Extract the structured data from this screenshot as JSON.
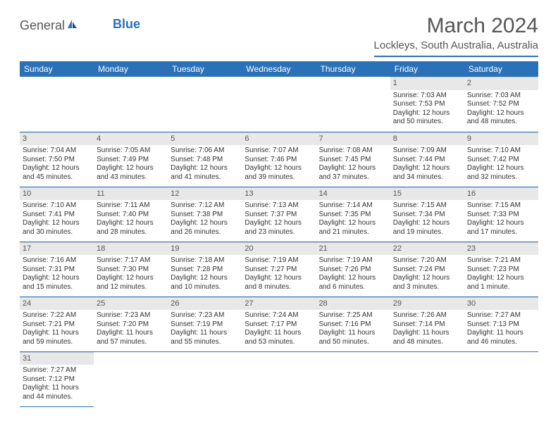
{
  "logo": {
    "general": "General",
    "blue": "Blue"
  },
  "title": "March 2024",
  "location": "Lockleys, South Australia, Australia",
  "dayHeaders": [
    "Sunday",
    "Monday",
    "Tuesday",
    "Wednesday",
    "Thursday",
    "Friday",
    "Saturday"
  ],
  "colors": {
    "headerBg": "#2b71b8",
    "headerText": "#ffffff",
    "dayNumBg": "#e8e8e8",
    "borderColor": "#2b71b8",
    "textColor": "#333333",
    "titleColor": "#555555"
  },
  "weeks": [
    [
      null,
      null,
      null,
      null,
      null,
      {
        "num": "1",
        "sunrise": "Sunrise: 7:03 AM",
        "sunset": "Sunset: 7:53 PM",
        "daylight": "Daylight: 12 hours and 50 minutes."
      },
      {
        "num": "2",
        "sunrise": "Sunrise: 7:03 AM",
        "sunset": "Sunset: 7:52 PM",
        "daylight": "Daylight: 12 hours and 48 minutes."
      }
    ],
    [
      {
        "num": "3",
        "sunrise": "Sunrise: 7:04 AM",
        "sunset": "Sunset: 7:50 PM",
        "daylight": "Daylight: 12 hours and 45 minutes."
      },
      {
        "num": "4",
        "sunrise": "Sunrise: 7:05 AM",
        "sunset": "Sunset: 7:49 PM",
        "daylight": "Daylight: 12 hours and 43 minutes."
      },
      {
        "num": "5",
        "sunrise": "Sunrise: 7:06 AM",
        "sunset": "Sunset: 7:48 PM",
        "daylight": "Daylight: 12 hours and 41 minutes."
      },
      {
        "num": "6",
        "sunrise": "Sunrise: 7:07 AM",
        "sunset": "Sunset: 7:46 PM",
        "daylight": "Daylight: 12 hours and 39 minutes."
      },
      {
        "num": "7",
        "sunrise": "Sunrise: 7:08 AM",
        "sunset": "Sunset: 7:45 PM",
        "daylight": "Daylight: 12 hours and 37 minutes."
      },
      {
        "num": "8",
        "sunrise": "Sunrise: 7:09 AM",
        "sunset": "Sunset: 7:44 PM",
        "daylight": "Daylight: 12 hours and 34 minutes."
      },
      {
        "num": "9",
        "sunrise": "Sunrise: 7:10 AM",
        "sunset": "Sunset: 7:42 PM",
        "daylight": "Daylight: 12 hours and 32 minutes."
      }
    ],
    [
      {
        "num": "10",
        "sunrise": "Sunrise: 7:10 AM",
        "sunset": "Sunset: 7:41 PM",
        "daylight": "Daylight: 12 hours and 30 minutes."
      },
      {
        "num": "11",
        "sunrise": "Sunrise: 7:11 AM",
        "sunset": "Sunset: 7:40 PM",
        "daylight": "Daylight: 12 hours and 28 minutes."
      },
      {
        "num": "12",
        "sunrise": "Sunrise: 7:12 AM",
        "sunset": "Sunset: 7:38 PM",
        "daylight": "Daylight: 12 hours and 26 minutes."
      },
      {
        "num": "13",
        "sunrise": "Sunrise: 7:13 AM",
        "sunset": "Sunset: 7:37 PM",
        "daylight": "Daylight: 12 hours and 23 minutes."
      },
      {
        "num": "14",
        "sunrise": "Sunrise: 7:14 AM",
        "sunset": "Sunset: 7:35 PM",
        "daylight": "Daylight: 12 hours and 21 minutes."
      },
      {
        "num": "15",
        "sunrise": "Sunrise: 7:15 AM",
        "sunset": "Sunset: 7:34 PM",
        "daylight": "Daylight: 12 hours and 19 minutes."
      },
      {
        "num": "16",
        "sunrise": "Sunrise: 7:15 AM",
        "sunset": "Sunset: 7:33 PM",
        "daylight": "Daylight: 12 hours and 17 minutes."
      }
    ],
    [
      {
        "num": "17",
        "sunrise": "Sunrise: 7:16 AM",
        "sunset": "Sunset: 7:31 PM",
        "daylight": "Daylight: 12 hours and 15 minutes."
      },
      {
        "num": "18",
        "sunrise": "Sunrise: 7:17 AM",
        "sunset": "Sunset: 7:30 PM",
        "daylight": "Daylight: 12 hours and 12 minutes."
      },
      {
        "num": "19",
        "sunrise": "Sunrise: 7:18 AM",
        "sunset": "Sunset: 7:28 PM",
        "daylight": "Daylight: 12 hours and 10 minutes."
      },
      {
        "num": "20",
        "sunrise": "Sunrise: 7:19 AM",
        "sunset": "Sunset: 7:27 PM",
        "daylight": "Daylight: 12 hours and 8 minutes."
      },
      {
        "num": "21",
        "sunrise": "Sunrise: 7:19 AM",
        "sunset": "Sunset: 7:26 PM",
        "daylight": "Daylight: 12 hours and 6 minutes."
      },
      {
        "num": "22",
        "sunrise": "Sunrise: 7:20 AM",
        "sunset": "Sunset: 7:24 PM",
        "daylight": "Daylight: 12 hours and 3 minutes."
      },
      {
        "num": "23",
        "sunrise": "Sunrise: 7:21 AM",
        "sunset": "Sunset: 7:23 PM",
        "daylight": "Daylight: 12 hours and 1 minute."
      }
    ],
    [
      {
        "num": "24",
        "sunrise": "Sunrise: 7:22 AM",
        "sunset": "Sunset: 7:21 PM",
        "daylight": "Daylight: 11 hours and 59 minutes."
      },
      {
        "num": "25",
        "sunrise": "Sunrise: 7:23 AM",
        "sunset": "Sunset: 7:20 PM",
        "daylight": "Daylight: 11 hours and 57 minutes."
      },
      {
        "num": "26",
        "sunrise": "Sunrise: 7:23 AM",
        "sunset": "Sunset: 7:19 PM",
        "daylight": "Daylight: 11 hours and 55 minutes."
      },
      {
        "num": "27",
        "sunrise": "Sunrise: 7:24 AM",
        "sunset": "Sunset: 7:17 PM",
        "daylight": "Daylight: 11 hours and 53 minutes."
      },
      {
        "num": "28",
        "sunrise": "Sunrise: 7:25 AM",
        "sunset": "Sunset: 7:16 PM",
        "daylight": "Daylight: 11 hours and 50 minutes."
      },
      {
        "num": "29",
        "sunrise": "Sunrise: 7:26 AM",
        "sunset": "Sunset: 7:14 PM",
        "daylight": "Daylight: 11 hours and 48 minutes."
      },
      {
        "num": "30",
        "sunrise": "Sunrise: 7:27 AM",
        "sunset": "Sunset: 7:13 PM",
        "daylight": "Daylight: 11 hours and 46 minutes."
      }
    ],
    [
      {
        "num": "31",
        "sunrise": "Sunrise: 7:27 AM",
        "sunset": "Sunset: 7:12 PM",
        "daylight": "Daylight: 11 hours and 44 minutes."
      },
      null,
      null,
      null,
      null,
      null,
      null
    ]
  ]
}
